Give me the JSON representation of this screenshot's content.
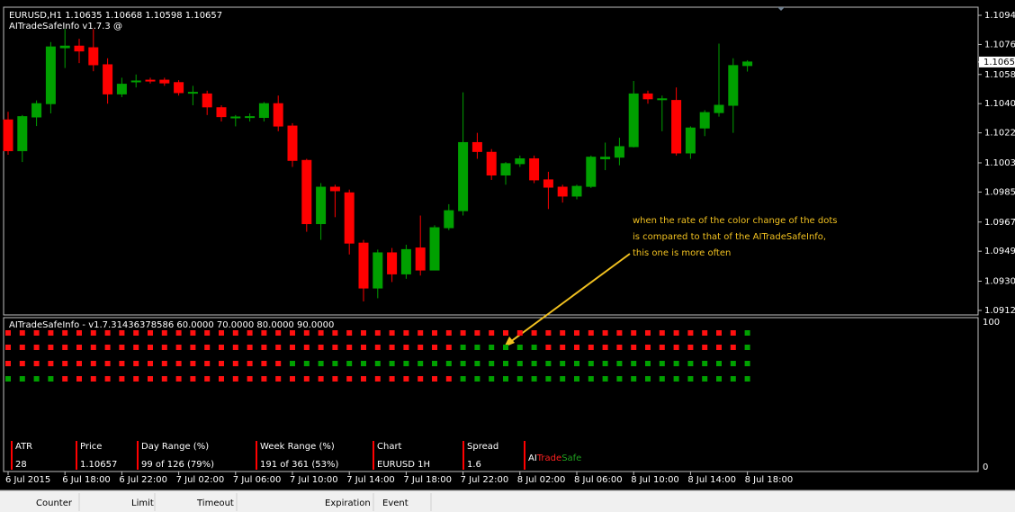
{
  "chart_data": {
    "type": "candlestick",
    "header": "EURUSD,H1  1.10635 1.10668 1.10598 1.10657",
    "indicator_name": "AITradeSafeInfo v1.7.3 @",
    "x": [
      "6 Jul 2015",
      null,
      null,
      null,
      "6 Jul 18:00",
      null,
      null,
      null,
      "6 Jul 22:00",
      null,
      null,
      null,
      "7 Jul 02:00",
      null,
      null,
      null,
      "7 Jul 06:00",
      null,
      null,
      null,
      "7 Jul 10:00",
      null,
      null,
      null,
      "7 Jul 14:00",
      null,
      null,
      null,
      "7 Jul 18:00",
      null,
      null,
      null,
      "7 Jul 22:00",
      null,
      null,
      null,
      "8 Jul 02:00",
      null,
      null,
      null,
      "8 Jul 06:00",
      null,
      null,
      null,
      "8 Jul 10:00",
      null,
      null,
      null,
      "8 Jul 14:00",
      null,
      null,
      null,
      "8 Jul 18:00"
    ],
    "open": [
      1.103,
      1.1011,
      1.10318,
      1.104,
      1.10745,
      1.10755,
      1.10745,
      1.1064,
      1.1046,
      1.10535,
      1.10545,
      1.10545,
      1.1053,
      1.1047,
      1.1046,
      1.10375,
      1.10318,
      1.10318,
      1.10315,
      1.104,
      1.10262,
      1.1005,
      1.0966,
      1.09885,
      1.0985,
      1.0954,
      1.09263,
      1.0948,
      1.0935,
      1.0951,
      1.09374,
      1.09635,
      1.0974,
      1.1016,
      1.101,
      1.0996,
      1.1003,
      1.1006,
      1.0993,
      1.09885,
      1.0983,
      1.0989,
      1.1006,
      1.1007,
      1.10135,
      1.1046,
      1.1043,
      1.1042,
      1.10096,
      1.1025,
      1.10345,
      1.1039,
      1.10635
    ],
    "high": [
      1.1035,
      1.1033,
      1.1042,
      1.1078,
      1.1086,
      1.108,
      1.1086,
      1.1068,
      1.1056,
      1.1058,
      1.1056,
      1.1056,
      1.10545,
      1.1051,
      1.1048,
      1.1039,
      1.1033,
      1.1034,
      1.1041,
      1.1045,
      1.1028,
      1.1006,
      1.0991,
      1.099,
      1.0987,
      1.0956,
      1.095,
      1.0951,
      1.0953,
      1.0971,
      1.0965,
      1.0978,
      1.1047,
      1.1022,
      1.1012,
      1.1004,
      1.1008,
      1.1008,
      1.0998,
      1.099,
      1.099,
      1.1008,
      1.1016,
      1.1019,
      1.1054,
      1.1048,
      1.1045,
      1.105,
      1.1026,
      1.1036,
      1.1077,
      1.1068,
      1.10668
    ],
    "low": [
      1.10085,
      1.1004,
      1.10262,
      1.1034,
      1.1062,
      1.1065,
      1.106,
      1.104,
      1.1044,
      1.105,
      1.10525,
      1.1051,
      1.1045,
      1.1039,
      1.1033,
      1.1029,
      1.1026,
      1.1029,
      1.1029,
      1.1023,
      1.1001,
      1.0961,
      1.0956,
      1.097,
      1.0947,
      1.0918,
      1.092,
      1.093,
      1.0932,
      1.0934,
      1.09374,
      1.0962,
      1.0971,
      1.1006,
      1.0993,
      1.099,
      1.1001,
      1.0991,
      1.0975,
      1.0979,
      1.0981,
      1.0988,
      1.0999,
      1.1002,
      1.1013,
      1.104,
      1.1023,
      1.1008,
      1.1006,
      1.102,
      1.1032,
      1.1022,
      1.10598
    ],
    "close": [
      1.1011,
      1.1032,
      1.104,
      1.1075,
      1.10755,
      1.10725,
      1.1064,
      1.1046,
      1.1052,
      1.1054,
      1.1054,
      1.10528,
      1.10468,
      1.1047,
      1.1038,
      1.1032,
      1.10318,
      1.1032,
      1.104,
      1.10262,
      1.1005,
      1.0966,
      1.09885,
      1.09863,
      1.0954,
      1.09263,
      1.0948,
      1.0935,
      1.095,
      1.09374,
      1.09635,
      1.0974,
      1.1016,
      1.10105,
      1.0996,
      1.1003,
      1.1006,
      1.0993,
      1.09885,
      1.0983,
      1.0989,
      1.1007,
      1.1007,
      1.10135,
      1.1046,
      1.1043,
      1.1043,
      1.10096,
      1.1025,
      1.10345,
      1.1039,
      1.10635,
      1.10657
    ],
    "up_color": "#00a000",
    "down_color": "#ff0000",
    "ylim": [
      1.09097,
      1.10995
    ],
    "yticks": [
      {
        "value": 1.10945,
        "label": "1.10945"
      },
      {
        "value": 1.10765,
        "label": "1.10765"
      },
      {
        "value": 1.1058,
        "label": "1.10580"
      },
      {
        "value": 1.104,
        "label": "1.10400"
      },
      {
        "value": 1.1022,
        "label": "1.10220"
      },
      {
        "value": 1.10035,
        "label": "1.10035"
      },
      {
        "value": 1.09855,
        "label": "1.09855"
      },
      {
        "value": 1.0967,
        "label": "1.09670"
      },
      {
        "value": 1.0949,
        "label": "1.09490"
      },
      {
        "value": 1.09305,
        "label": "1.09305"
      },
      {
        "value": 1.09125,
        "label": "1.09125"
      }
    ],
    "annotation": [
      "when the rate of the color change of the dots",
      "is compared to that of the AITradeSafeInfo,",
      "this one is more often"
    ],
    "indicator": {
      "title": "AITradeSafeInfo - v1.7.31436378586 60.0000 70.0000 80.0000 90.0000",
      "yticks": [
        100,
        0
      ],
      "up_color": "#00a000",
      "down_color": "#ff1010",
      "rows": [
        [
          0,
          0,
          0,
          0,
          0,
          0,
          0,
          0,
          0,
          0,
          0,
          0,
          0,
          0,
          0,
          0,
          0,
          0,
          0,
          0,
          0,
          0,
          0,
          0,
          0,
          0,
          0,
          0,
          0,
          0,
          0,
          0,
          0,
          0,
          0,
          0,
          0,
          0,
          0,
          0,
          0,
          0,
          0,
          0,
          0,
          0,
          0,
          0,
          0,
          0,
          0,
          0,
          1
        ],
        [
          0,
          0,
          0,
          0,
          0,
          0,
          0,
          0,
          0,
          0,
          0,
          0,
          0,
          0,
          0,
          0,
          0,
          0,
          0,
          0,
          0,
          0,
          0,
          0,
          0,
          0,
          0,
          0,
          0,
          0,
          0,
          0,
          1,
          1,
          1,
          1,
          1,
          1,
          0,
          0,
          0,
          0,
          0,
          0,
          0,
          0,
          0,
          0,
          0,
          0,
          0,
          0,
          1
        ],
        [
          0,
          0,
          0,
          0,
          0,
          0,
          0,
          0,
          0,
          0,
          0,
          0,
          0,
          0,
          0,
          0,
          0,
          0,
          0,
          0,
          1,
          1,
          1,
          1,
          1,
          1,
          1,
          1,
          1,
          1,
          1,
          1,
          1,
          1,
          1,
          1,
          1,
          1,
          1,
          1,
          1,
          1,
          1,
          1,
          1,
          1,
          1,
          1,
          1,
          1,
          1,
          1,
          1
        ],
        [
          1,
          1,
          1,
          1,
          0,
          0,
          0,
          0,
          0,
          0,
          0,
          0,
          0,
          0,
          0,
          0,
          0,
          0,
          0,
          0,
          0,
          0,
          0,
          0,
          0,
          0,
          0,
          0,
          0,
          0,
          0,
          0,
          1,
          1,
          1,
          1,
          1,
          1,
          1,
          1,
          1,
          1,
          1,
          1,
          1,
          1,
          1,
          1,
          1,
          1,
          1,
          1,
          1
        ]
      ]
    }
  },
  "info_panel": [
    {
      "label": "ATR",
      "value": "28"
    },
    {
      "label": "Price",
      "value": "1.10657"
    },
    {
      "label": "Day Range (%)",
      "value": "99 of 126 (79%)"
    },
    {
      "label": "Week Range (%)",
      "value": "191 of 361 (53%)"
    },
    {
      "label": "Chart",
      "value": "EURUSD  1H"
    },
    {
      "label": "Spread",
      "value": "1.6"
    }
  ],
  "logo": [
    "AI",
    "Trade",
    "Safe"
  ],
  "bottom_bar": [
    "Counter",
    "Limit",
    "Timeout",
    "Expiration",
    "Event"
  ]
}
